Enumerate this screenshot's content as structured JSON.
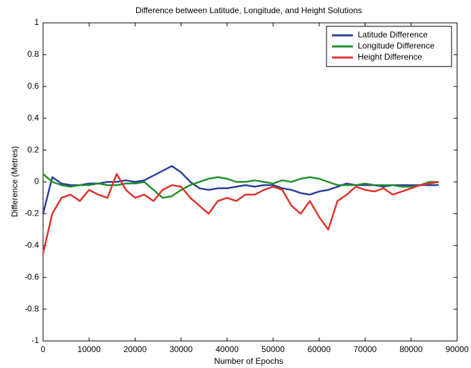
{
  "chart_data": {
    "type": "line",
    "title": "Difference between Latitude, Longitude, and Height Solutions",
    "x_label": "Number of Epochs",
    "y_label": "Difference (Metres)",
    "xlim": [
      0,
      90000
    ],
    "xticks": [
      0,
      10000,
      20000,
      30000,
      40000,
      50000,
      60000,
      70000,
      80000,
      90000
    ],
    "ylim": [
      -1,
      1
    ],
    "yticks": [
      -1,
      -0.8,
      -0.6,
      -0.4,
      -0.2,
      0,
      0.2,
      0.4,
      0.6,
      0.8,
      1
    ],
    "legend": "upper right",
    "x": [
      0,
      2000,
      4000,
      6000,
      8000,
      10000,
      12000,
      14000,
      16000,
      18000,
      20000,
      22000,
      24000,
      26000,
      28000,
      30000,
      32000,
      34000,
      36000,
      38000,
      40000,
      42000,
      44000,
      46000,
      48000,
      50000,
      52000,
      54000,
      56000,
      58000,
      60000,
      62000,
      64000,
      66000,
      68000,
      70000,
      72000,
      74000,
      76000,
      78000,
      80000,
      82000,
      84000,
      86000
    ],
    "series": [
      {
        "name": "Latitude Difference",
        "color": "#2b3d9c",
        "values": [
          -0.2,
          0.03,
          -0.01,
          -0.02,
          -0.02,
          -0.01,
          -0.01,
          0,
          0,
          0.01,
          0,
          0.01,
          0.04,
          0.07,
          0.1,
          0.06,
          0,
          -0.04,
          -0.05,
          -0.04,
          -0.04,
          -0.03,
          -0.02,
          -0.03,
          -0.02,
          -0.02,
          -0.04,
          -0.05,
          -0.07,
          -0.08,
          -0.06,
          -0.05,
          -0.03,
          -0.01,
          -0.02,
          -0.02,
          -0.02,
          -0.03,
          -0.02,
          -0.02,
          -0.02,
          -0.02,
          -0.02,
          -0.02
        ]
      },
      {
        "name": "Longitude Difference",
        "color": "#1f8f2a",
        "values": [
          0.05,
          0,
          -0.02,
          -0.03,
          -0.02,
          -0.02,
          -0.01,
          -0.02,
          -0.02,
          -0.01,
          -0.01,
          0,
          -0.05,
          -0.1,
          -0.09,
          -0.05,
          -0.02,
          0,
          0.02,
          0.03,
          0.02,
          0,
          0,
          0.01,
          0,
          -0.01,
          0.01,
          0,
          0.02,
          0.03,
          0.02,
          0,
          -0.02,
          -0.02,
          -0.02,
          -0.01,
          -0.02,
          -0.02,
          -0.02,
          -0.03,
          -0.03,
          -0.02,
          0,
          0
        ]
      },
      {
        "name": "Height Difference",
        "color": "#e0322a",
        "values": [
          -0.45,
          -0.2,
          -0.1,
          -0.08,
          -0.12,
          -0.05,
          -0.08,
          -0.1,
          0.05,
          -0.05,
          -0.1,
          -0.08,
          -0.12,
          -0.05,
          -0.02,
          -0.03,
          -0.1,
          -0.15,
          -0.2,
          -0.12,
          -0.1,
          -0.12,
          -0.08,
          -0.08,
          -0.05,
          -0.03,
          -0.05,
          -0.15,
          -0.2,
          -0.12,
          -0.22,
          -0.3,
          -0.12,
          -0.08,
          -0.03,
          -0.05,
          -0.06,
          -0.04,
          -0.08,
          -0.06,
          -0.04,
          -0.02,
          -0.01,
          0
        ]
      }
    ]
  }
}
